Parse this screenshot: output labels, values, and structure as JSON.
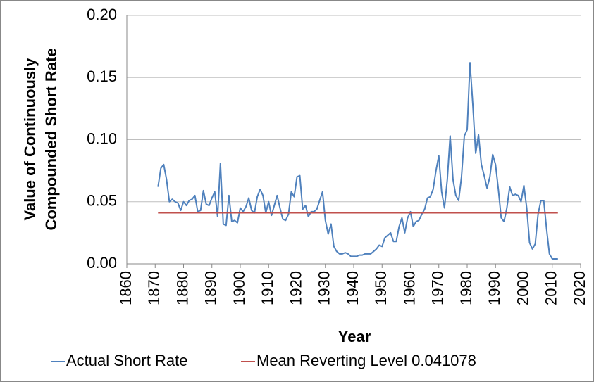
{
  "chart_data": {
    "type": "line",
    "y_label": [
      "Value of Continuously",
      "Compounded Short Rate"
    ],
    "x_label": "Year",
    "xlim": [
      1860,
      2020
    ],
    "xticks": [
      1860,
      1870,
      1880,
      1890,
      1900,
      1910,
      1920,
      1930,
      1940,
      1950,
      1960,
      1970,
      1980,
      1990,
      2000,
      2010,
      2020
    ],
    "ylim": [
      0,
      0.2
    ],
    "yticks": [
      {
        "value": 0,
        "label": "0.00"
      },
      {
        "value": 0.05,
        "label": "0.05"
      },
      {
        "value": 0.1,
        "label": "0.10"
      },
      {
        "value": 0.15,
        "label": "0.15"
      },
      {
        "value": 0.2,
        "label": "0.20"
      }
    ],
    "grid": true,
    "legend": "bottom",
    "series": [
      {
        "name": "Actual Short Rate",
        "color": "#4f81bd",
        "x": [
          1871,
          1872,
          1873,
          1874,
          1875,
          1876,
          1877,
          1878,
          1879,
          1880,
          1881,
          1882,
          1883,
          1884,
          1885,
          1886,
          1887,
          1888,
          1889,
          1890,
          1891,
          1892,
          1893,
          1894,
          1895,
          1896,
          1897,
          1898,
          1899,
          1900,
          1901,
          1902,
          1903,
          1904,
          1905,
          1906,
          1907,
          1908,
          1909,
          1910,
          1911,
          1912,
          1913,
          1914,
          1915,
          1916,
          1917,
          1918,
          1919,
          1920,
          1921,
          1922,
          1923,
          1924,
          1925,
          1926,
          1927,
          1928,
          1929,
          1930,
          1931,
          1932,
          1933,
          1934,
          1935,
          1936,
          1937,
          1938,
          1939,
          1940,
          1941,
          1942,
          1943,
          1944,
          1945,
          1946,
          1947,
          1948,
          1949,
          1950,
          1951,
          1952,
          1953,
          1954,
          1955,
          1956,
          1957,
          1958,
          1959,
          1960,
          1961,
          1962,
          1963,
          1964,
          1965,
          1966,
          1967,
          1968,
          1969,
          1970,
          1971,
          1972,
          1973,
          1974,
          1975,
          1976,
          1977,
          1978,
          1979,
          1980,
          1981,
          1982,
          1983,
          1984,
          1985,
          1986,
          1987,
          1988,
          1989,
          1990,
          1991,
          1992,
          1993,
          1994,
          1995,
          1996,
          1997,
          1998,
          1999,
          2000,
          2001,
          2002,
          2003,
          2004,
          2005,
          2006,
          2007,
          2008,
          2009,
          2010,
          2011,
          2012
        ],
        "values": [
          0.062,
          0.077,
          0.08,
          0.068,
          0.05,
          0.052,
          0.05,
          0.049,
          0.043,
          0.05,
          0.047,
          0.051,
          0.052,
          0.055,
          0.042,
          0.043,
          0.059,
          0.048,
          0.047,
          0.053,
          0.058,
          0.038,
          0.081,
          0.032,
          0.031,
          0.055,
          0.034,
          0.035,
          0.033,
          0.045,
          0.042,
          0.046,
          0.053,
          0.043,
          0.041,
          0.054,
          0.06,
          0.055,
          0.041,
          0.05,
          0.039,
          0.047,
          0.055,
          0.045,
          0.036,
          0.035,
          0.04,
          0.058,
          0.054,
          0.07,
          0.071,
          0.044,
          0.047,
          0.038,
          0.042,
          0.042,
          0.044,
          0.051,
          0.058,
          0.035,
          0.024,
          0.032,
          0.014,
          0.01,
          0.008,
          0.008,
          0.009,
          0.008,
          0.006,
          0.006,
          0.006,
          0.007,
          0.007,
          0.008,
          0.008,
          0.008,
          0.01,
          0.012,
          0.015,
          0.014,
          0.021,
          0.023,
          0.025,
          0.018,
          0.018,
          0.03,
          0.037,
          0.025,
          0.037,
          0.042,
          0.03,
          0.034,
          0.035,
          0.04,
          0.044,
          0.053,
          0.054,
          0.06,
          0.075,
          0.087,
          0.058,
          0.045,
          0.068,
          0.103,
          0.068,
          0.055,
          0.051,
          0.07,
          0.103,
          0.108,
          0.162,
          0.128,
          0.089,
          0.104,
          0.08,
          0.071,
          0.061,
          0.07,
          0.088,
          0.08,
          0.06,
          0.037,
          0.034,
          0.045,
          0.062,
          0.055,
          0.056,
          0.055,
          0.05,
          0.063,
          0.045,
          0.017,
          0.012,
          0.016,
          0.04,
          0.051,
          0.051,
          0.028,
          0.008,
          0.004,
          0.004,
          0.004
        ]
      },
      {
        "name": "Mean Reverting Level 0.041078",
        "color": "#c0504d",
        "x": [
          1871,
          2012
        ],
        "values": [
          0.041078,
          0.041078
        ]
      }
    ]
  }
}
